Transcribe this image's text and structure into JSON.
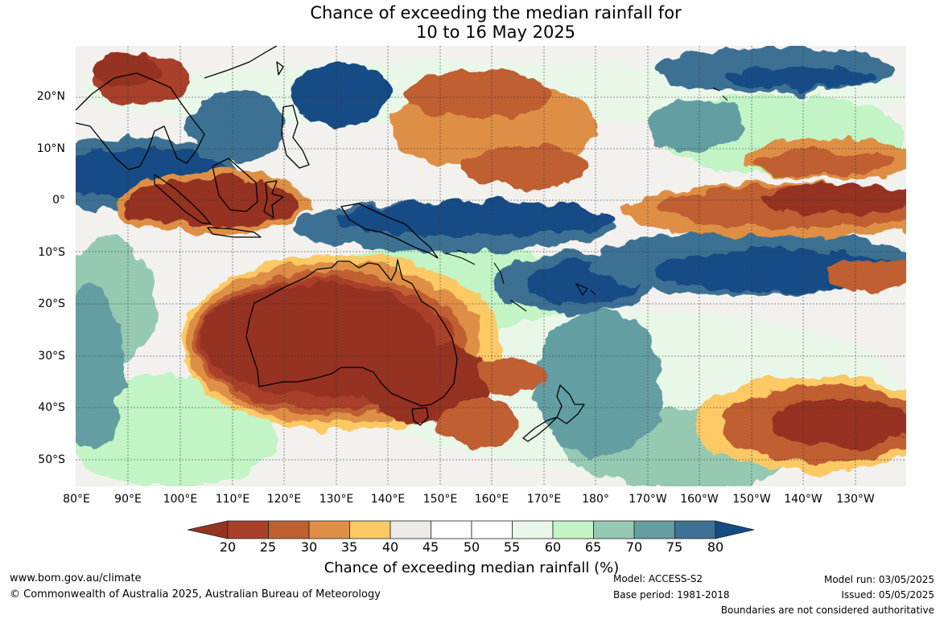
{
  "title": {
    "line1": "Chance of exceeding the median rainfall for",
    "line2": "10 to 16 May 2025"
  },
  "lat_labels": [
    "20°N",
    "10°N",
    "0°",
    "10°S",
    "20°S",
    "30°S",
    "40°S",
    "50°S"
  ],
  "lon_labels": [
    "80°E",
    "90°E",
    "100°E",
    "110°E",
    "120°E",
    "130°E",
    "140°E",
    "150°E",
    "160°E",
    "170°E",
    "180°",
    "170°W",
    "160°W",
    "150°W",
    "140°W",
    "130°W"
  ],
  "legend": {
    "title": "Chance of exceeding median rainfall (%)",
    "ticks": [
      "20",
      "25",
      "30",
      "35",
      "40",
      "45",
      "50",
      "55",
      "60",
      "65",
      "70",
      "75",
      "80"
    ],
    "colors": [
      "#953321",
      "#a9412a",
      "#c05f30",
      "#de8f45",
      "#fcc965",
      "#eceae6",
      "#ffffff",
      "#ffffff",
      "#e9f7e8",
      "#c2f4c5",
      "#95c9b2",
      "#649ea3",
      "#3e7193",
      "#154b85"
    ]
  },
  "footer": {
    "url": "www.bom.gov.au/climate",
    "copyright": "© Commonwealth of Australia 2025, Australian Bureau of Meteorology",
    "model": "Model: ACCESS-S2",
    "base_period": "Base period: 1981-2018",
    "model_run": "Model run: 03/05/2025",
    "issued": "Issued: 05/05/2025",
    "disclaimer": "Boundaries are not considered authoritative"
  }
}
